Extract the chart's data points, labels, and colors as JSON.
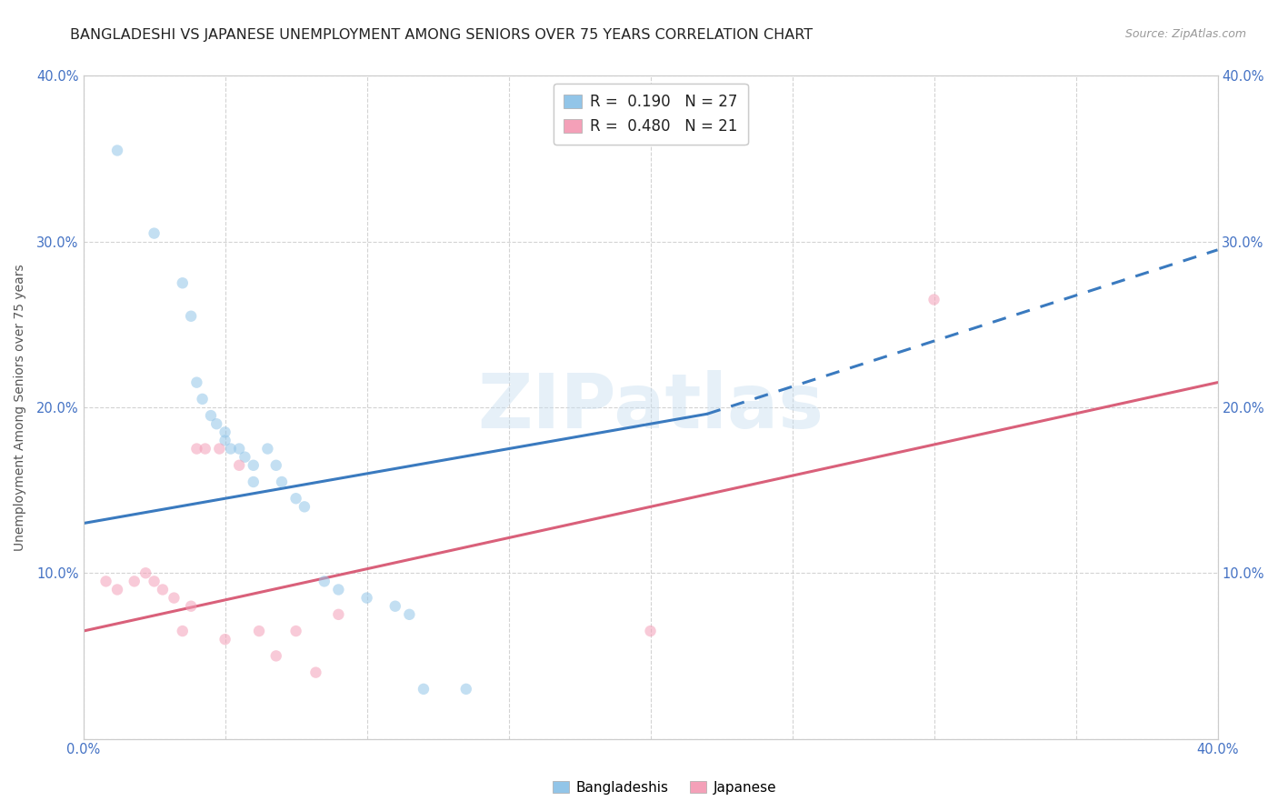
{
  "title": "BANGLADESHI VS JAPANESE UNEMPLOYMENT AMONG SENIORS OVER 75 YEARS CORRELATION CHART",
  "source": "Source: ZipAtlas.com",
  "ylabel": "Unemployment Among Seniors over 75 years",
  "xlim": [
    0.0,
    0.4
  ],
  "ylim": [
    0.0,
    0.4
  ],
  "watermark": "ZIPatlas",
  "bangladeshi_x": [
    0.012,
    0.025,
    0.035,
    0.038,
    0.04,
    0.042,
    0.045,
    0.047,
    0.05,
    0.05,
    0.052,
    0.055,
    0.057,
    0.06,
    0.06,
    0.065,
    0.068,
    0.07,
    0.075,
    0.078,
    0.085,
    0.09,
    0.1,
    0.11,
    0.115,
    0.12,
    0.135
  ],
  "bangladeshi_y": [
    0.355,
    0.305,
    0.275,
    0.255,
    0.215,
    0.205,
    0.195,
    0.19,
    0.185,
    0.18,
    0.175,
    0.175,
    0.17,
    0.165,
    0.155,
    0.175,
    0.165,
    0.155,
    0.145,
    0.14,
    0.095,
    0.09,
    0.085,
    0.08,
    0.075,
    0.03,
    0.03
  ],
  "japanese_x": [
    0.008,
    0.012,
    0.018,
    0.022,
    0.025,
    0.028,
    0.032,
    0.035,
    0.038,
    0.04,
    0.043,
    0.048,
    0.05,
    0.055,
    0.062,
    0.068,
    0.075,
    0.082,
    0.09,
    0.2,
    0.3
  ],
  "japanese_y": [
    0.095,
    0.09,
    0.095,
    0.1,
    0.095,
    0.09,
    0.085,
    0.065,
    0.08,
    0.175,
    0.175,
    0.175,
    0.06,
    0.165,
    0.065,
    0.05,
    0.065,
    0.04,
    0.075,
    0.065,
    0.265
  ],
  "bang_line_x0": 0.0,
  "bang_line_y0": 0.13,
  "bang_line_x1": 0.22,
  "bang_line_y1": 0.196,
  "bang_line_dash_x0": 0.22,
  "bang_line_dash_y0": 0.196,
  "bang_line_dash_x1": 0.4,
  "bang_line_dash_y1": 0.295,
  "jap_line_x0": 0.0,
  "jap_line_y0": 0.065,
  "jap_line_x1": 0.4,
  "jap_line_y1": 0.215,
  "dot_size": 80,
  "dot_alpha": 0.55,
  "bangladeshi_color": "#92c5e8",
  "japanese_color": "#f4a0b8",
  "bangladeshi_line_color": "#3a7abf",
  "japanese_line_color": "#d9607a",
  "tick_color": "#4472c4",
  "title_fontsize": 11.5,
  "axis_label_fontsize": 10,
  "tick_fontsize": 10.5
}
